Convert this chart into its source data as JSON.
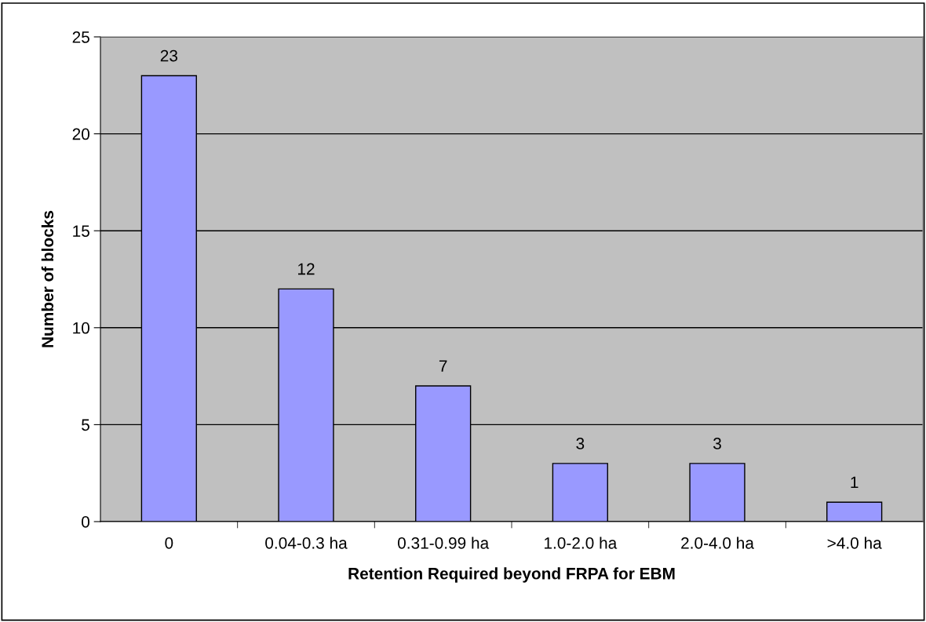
{
  "chart_data": {
    "type": "bar",
    "xlabel": "Retention Required beyond FRPA for EBM",
    "ylabel": "Number of blocks",
    "categories": [
      "0",
      "0.04-0.3 ha",
      "0.31-0.99 ha",
      "1.0-2.0 ha",
      "2.0-4.0 ha",
      ">4.0 ha"
    ],
    "values": [
      23,
      12,
      7,
      3,
      3,
      1
    ],
    "color": "#9999ff",
    "ylim": [
      0,
      25
    ],
    "yticks": [
      0,
      5,
      10,
      15,
      20,
      25
    ],
    "grid": "y",
    "data_labels": true
  }
}
